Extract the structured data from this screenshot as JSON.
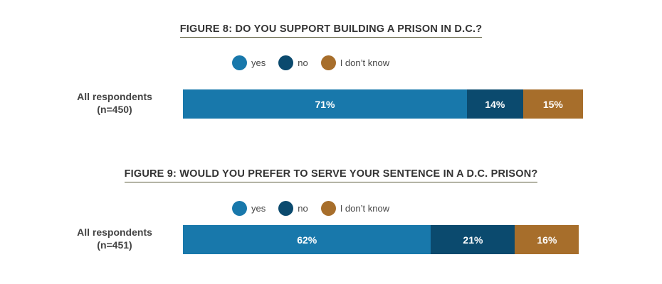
{
  "colors": {
    "yes": "#1878ab",
    "no": "#0b4a6e",
    "dont_know": "#a76e2b"
  },
  "chart_data": [
    {
      "type": "bar",
      "orientation": "horizontal",
      "stacked": true,
      "title": "FIGURE 8: DO YOU SUPPORT BUILDING A PRISON IN D.C.?",
      "categories": [
        "All respondents (n=450)"
      ],
      "category_lines": [
        "All respondents",
        "(n=450)"
      ],
      "legend": [
        "yes",
        "no",
        "I don’t know"
      ],
      "legend_position": "top",
      "series": [
        {
          "name": "yes",
          "values": [
            71
          ],
          "label": "71%",
          "color": "#1878ab"
        },
        {
          "name": "no",
          "values": [
            14
          ],
          "label": "14%",
          "color": "#0b4a6e"
        },
        {
          "name": "I don’t know",
          "values": [
            15
          ],
          "label": "15%",
          "color": "#a76e2b"
        }
      ]
    },
    {
      "type": "bar",
      "orientation": "horizontal",
      "stacked": true,
      "title": "FIGURE 9: WOULD YOU PREFER TO SERVE YOUR SENTENCE IN A D.C. PRISON?",
      "categories": [
        "All respondents (n=451)"
      ],
      "category_lines": [
        "All respondents",
        "(n=451)"
      ],
      "legend": [
        "yes",
        "no",
        "I don’t know"
      ],
      "legend_position": "top",
      "series": [
        {
          "name": "yes",
          "values": [
            62
          ],
          "label": "62%",
          "color": "#1878ab"
        },
        {
          "name": "no",
          "values": [
            21
          ],
          "label": "21%",
          "color": "#0b4a6e"
        },
        {
          "name": "I don’t know",
          "values": [
            16
          ],
          "label": "16%",
          "color": "#a76e2b"
        }
      ]
    }
  ]
}
